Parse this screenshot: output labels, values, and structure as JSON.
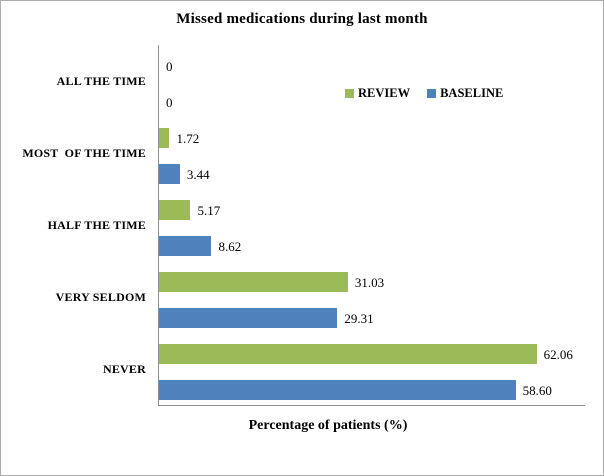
{
  "chart_data": {
    "type": "bar",
    "orientation": "horizontal",
    "title": "Missed medications during last month",
    "xlabel": "Percentage of patients (%)",
    "categories": [
      "ALL THE TIME",
      "MOST  OF THE TIME",
      "HALF THE TIME",
      "VERY SELDOM",
      "NEVER"
    ],
    "series": [
      {
        "name": "REVIEW",
        "color": "#9BBB59",
        "values": [
          0,
          1.72,
          5.17,
          31.03,
          62.06
        ],
        "labels": [
          "0",
          "1.72",
          "5.17",
          "31.03",
          "62.06"
        ]
      },
      {
        "name": "BASELINE",
        "color": "#4F81BD",
        "values": [
          0,
          3.44,
          8.62,
          29.31,
          58.6
        ],
        "labels": [
          "0",
          "3.44",
          "8.62",
          "29.31",
          "58.60"
        ]
      }
    ],
    "xlim": [
      0,
      70
    ],
    "grid": false,
    "legend_position": "inside-top-right",
    "axis_color": "#8e8e8e",
    "border_color": "#ababab"
  }
}
